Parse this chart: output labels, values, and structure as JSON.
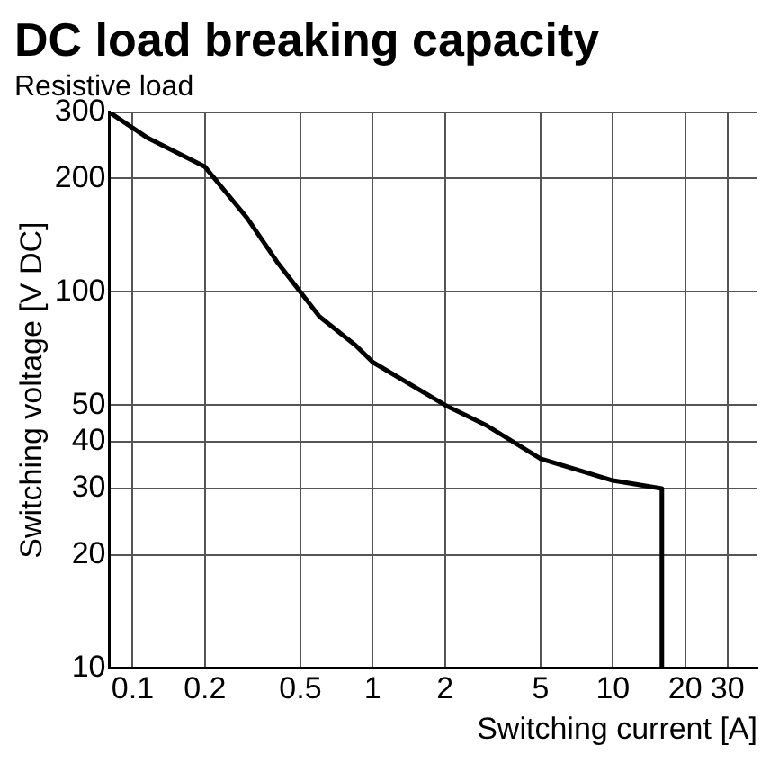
{
  "chart_data": {
    "type": "line",
    "title": "DC load breaking capacity",
    "subtitle": "Resistive load",
    "xlabel": "Switching current [A]",
    "ylabel": "Switching voltage [V DC]",
    "log": "xy",
    "grid": true,
    "legend": false,
    "marker": "none",
    "line_style": "solid",
    "xlim": [
      0.08,
      40
    ],
    "xticks": [
      0.1,
      0.2,
      0.5,
      1,
      2,
      5,
      10,
      20,
      30
    ],
    "ylim": [
      10,
      300
    ],
    "yticks": [
      10,
      20,
      30,
      40,
      50,
      100,
      200,
      300
    ],
    "series": [
      {
        "color": "#000000",
        "x": [
          0.08,
          0.116,
          0.2,
          0.3,
          0.4,
          0.6,
          0.85,
          1,
          2,
          3,
          5,
          10,
          16,
          16
        ],
        "values": [
          300,
          256,
          215,
          157,
          120,
          86,
          72,
          65,
          50,
          44,
          36,
          31.5,
          30,
          10
        ]
      }
    ]
  }
}
